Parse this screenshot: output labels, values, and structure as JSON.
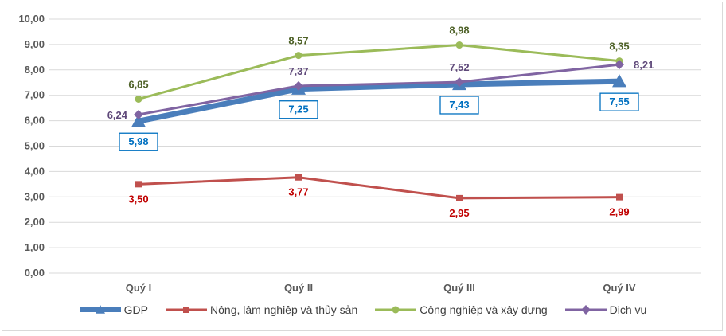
{
  "chart_data": {
    "type": "line",
    "categories": [
      "Quý I",
      "Quý II",
      "Quý III",
      "Quý IV"
    ],
    "ylim": [
      0,
      10
    ],
    "yticks": [
      "0,00",
      "1,00",
      "2,00",
      "3,00",
      "4,00",
      "5,00",
      "6,00",
      "7,00",
      "8,00",
      "9,00",
      "10,00"
    ],
    "grid": true,
    "legend_position": "bottom",
    "series": [
      {
        "name": "GDP",
        "values": [
          5.98,
          7.25,
          7.43,
          7.55
        ],
        "labels": [
          "5,98",
          "7,25",
          "7,43",
          "7,55"
        ],
        "color": "#4a7ebb",
        "label_color": "#0070c0",
        "marker": "triangle"
      },
      {
        "name": "Nông, lâm nghiệp và thủy sản",
        "values": [
          3.5,
          3.77,
          2.95,
          2.99
        ],
        "labels": [
          "3,50",
          "3,77",
          "2,95",
          "2,99"
        ],
        "color": "#c0504d",
        "label_color": "#c00000",
        "marker": "square"
      },
      {
        "name": "Công nghiệp và xây dựng",
        "values": [
          6.85,
          8.57,
          8.98,
          8.35
        ],
        "labels": [
          "6,85",
          "8,57",
          "8,98",
          "8,35"
        ],
        "color": "#9bbb59",
        "label_color": "#4f6228",
        "marker": "circle"
      },
      {
        "name": "Dịch vụ",
        "values": [
          6.24,
          7.37,
          7.52,
          8.21
        ],
        "labels": [
          "6,24",
          "7,37",
          "7,52",
          "8,21"
        ],
        "color": "#8064a2",
        "label_color": "#5f497a",
        "marker": "diamond"
      }
    ]
  }
}
